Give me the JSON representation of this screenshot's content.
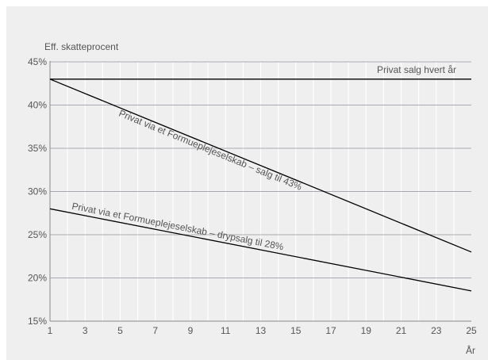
{
  "chart_data": {
    "type": "line",
    "ylabel": "Eff. skatteprocent",
    "xlabel": "År",
    "xlim": [
      1,
      25
    ],
    "ylim": [
      15,
      45
    ],
    "x_ticks": [
      1,
      3,
      5,
      7,
      9,
      11,
      13,
      15,
      17,
      19,
      21,
      23,
      25
    ],
    "x_tick_labels": [
      "1",
      "3",
      "5",
      "7",
      "9",
      "11",
      "13",
      "15",
      "17",
      "19",
      "21",
      "23",
      "25"
    ],
    "y_ticks": [
      15,
      20,
      25,
      30,
      35,
      40,
      45
    ],
    "y_tick_labels": [
      "15%",
      "20%",
      "25%",
      "30%",
      "35%",
      "40%",
      "45%"
    ],
    "grid": true,
    "series": [
      {
        "name": "Privat salg hvert år",
        "x": [
          1,
          25
        ],
        "values": [
          43,
          43
        ]
      },
      {
        "name": "Privat via et Formuepleje­selskab – salg til 43%",
        "x": [
          1,
          25
        ],
        "values": [
          43,
          23
        ]
      },
      {
        "name": "Privat via et Formuepleje­selskab – drypsalg til 28%",
        "x": [
          1,
          25
        ],
        "values": [
          28,
          18.5
        ]
      }
    ],
    "colors": {
      "background": "#efefef",
      "line": "#000000",
      "major_grid": "#a9a9b3",
      "minor_grid": "#ffffff",
      "text": "#555555"
    }
  }
}
